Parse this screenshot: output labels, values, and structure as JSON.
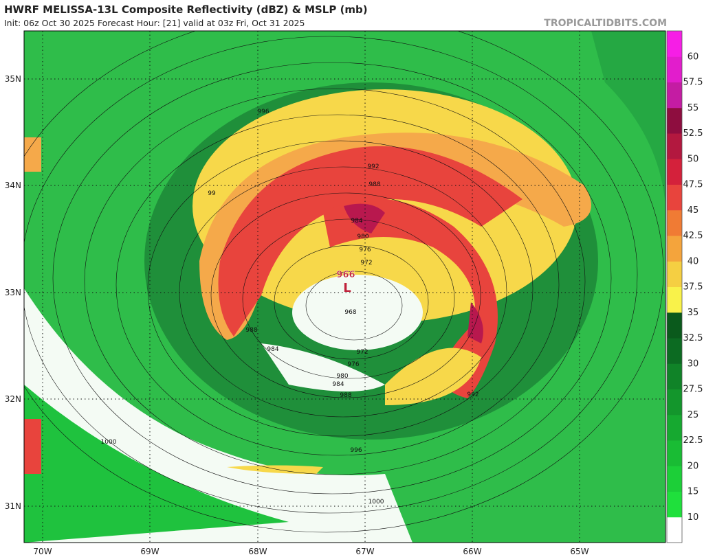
{
  "header": {
    "title": "HWRF MELISSA-13L Composite Reflectivity (dBZ) & MSLP (mb)",
    "subtitle": "Init: 06z Oct 30 2025   Forecast Hour: [21]   valid at 03z Fri, Oct 31 2025",
    "watermark": "TROPICALTIDBITS.COM"
  },
  "lat_labels": [
    "35N",
    "34N",
    "33N",
    "32N",
    "31N"
  ],
  "lon_labels": [
    "70W",
    "69W",
    "68W",
    "67W",
    "66W",
    "65W"
  ],
  "colorbar_labels": [
    "10",
    "15",
    "20",
    "22.5",
    "25",
    "27.5",
    "30",
    "32.5",
    "35",
    "37.5",
    "40",
    "42.5",
    "45",
    "47.5",
    "50",
    "52.5",
    "55",
    "57.5",
    "60"
  ],
  "contour_labels": [
    "996",
    "992",
    "988",
    "984",
    "980",
    "976",
    "972",
    "968",
    "972",
    "976",
    "980",
    "984",
    "988",
    "992",
    "996",
    "1000",
    "1000",
    "988",
    "984",
    "99"
  ],
  "low": {
    "pressure": "966",
    "symbol": "L"
  }
}
